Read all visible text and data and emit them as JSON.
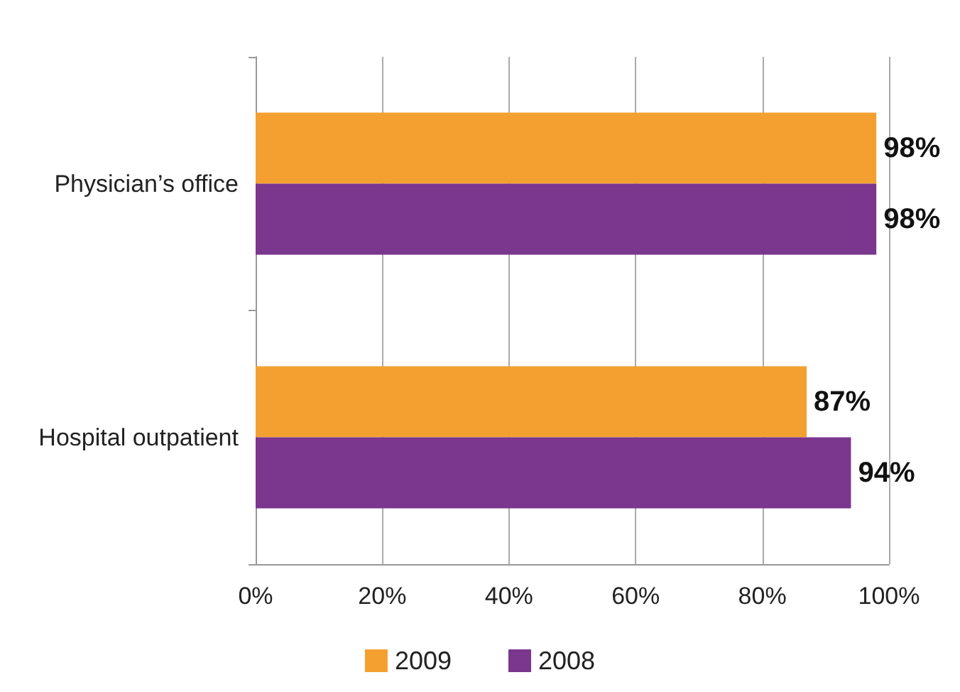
{
  "chart_data": {
    "type": "bar",
    "orientation": "horizontal",
    "categories": [
      "Physician’s office",
      "Hospital outpatient"
    ],
    "series": [
      {
        "name": "2009",
        "color": "#f4a030",
        "values": [
          98,
          87
        ],
        "value_labels": [
          "98%",
          "87%"
        ]
      },
      {
        "name": "2008",
        "color": "#7b368e",
        "values": [
          98,
          94
        ],
        "value_labels": [
          "98%",
          "94%"
        ]
      }
    ],
    "xlim": [
      0,
      100
    ],
    "xticks": [
      {
        "value": 0,
        "label": "0%"
      },
      {
        "value": 20,
        "label": "20%"
      },
      {
        "value": 40,
        "label": "40%"
      },
      {
        "value": 60,
        "label": "60%"
      },
      {
        "value": 80,
        "label": "80%"
      },
      {
        "value": 100,
        "label": "100%"
      }
    ],
    "grid": "x",
    "legend": "bottom"
  }
}
